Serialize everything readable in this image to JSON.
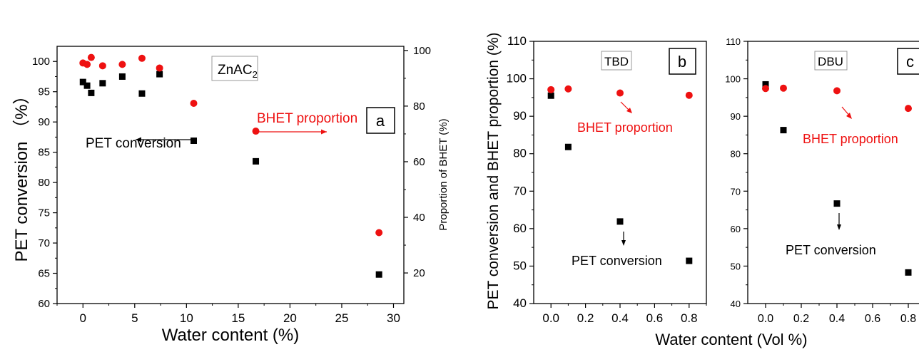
{
  "colors": {
    "conversion": "#000000",
    "bhet": "#ee1111",
    "arrow_red": "#ee1111"
  },
  "chart_data": [
    {
      "type": "scatter",
      "panel_letter": "a",
      "catalyst_label": "ZnAC",
      "catalyst_sub": "2",
      "xlabel": "Water content (%)",
      "ylabel": "PET conversion （%）",
      "y2label": "Proportion of BHET (%)",
      "xlim": [
        -2.5,
        31
      ],
      "ylim": [
        60,
        102.5
      ],
      "y2lim": [
        20,
        100
      ],
      "x_ticks": [
        0,
        5,
        10,
        15,
        20,
        25,
        30
      ],
      "y_ticks": [
        60,
        65,
        70,
        75,
        80,
        85,
        90,
        95,
        100
      ],
      "y2_ticks": [
        20,
        40,
        60,
        80,
        100
      ],
      "annotations": [
        "BHET proportion",
        "PET conversion"
      ],
      "series": [
        {
          "name": "PET conversion",
          "axis": "left",
          "marker": "square",
          "x": [
            0,
            0.4,
            0.8,
            1.9,
            3.8,
            5.7,
            7.4,
            10.7,
            16.7,
            28.6
          ],
          "y": [
            96.6,
            96.0,
            94.8,
            96.4,
            97.5,
            94.7,
            97.9,
            86.9,
            83.5,
            64.8
          ]
        },
        {
          "name": "Proportion of BHET",
          "axis": "right",
          "marker": "circle",
          "x": [
            0,
            0.4,
            0.8,
            1.9,
            3.8,
            5.7,
            7.4,
            10.7,
            16.7,
            28.6
          ],
          "y": [
            95.5,
            95.0,
            97.5,
            94.5,
            95.0,
            97.2,
            93.7,
            81.0,
            71.0,
            34.5
          ]
        }
      ]
    },
    {
      "type": "scatter",
      "panel_letter": "b",
      "catalyst_label": "TBD",
      "ylabel": "PET conversion and BHET proportion (%)",
      "xlim": [
        -0.1,
        0.9
      ],
      "ylim": [
        40,
        110
      ],
      "x_ticks": [
        "0.0",
        "0.2",
        "0.4",
        "0.6",
        "0.8"
      ],
      "y_ticks": [
        40,
        50,
        60,
        70,
        80,
        90,
        100,
        110
      ],
      "annotations": [
        "BHET proportion",
        "PET conversion"
      ],
      "series": [
        {
          "name": "PET conversion",
          "marker": "square",
          "x": [
            0,
            0.1,
            0.4,
            0.8
          ],
          "y": [
            95.5,
            81.8,
            61.9,
            51.4
          ]
        },
        {
          "name": "BHET proportion",
          "marker": "circle",
          "x": [
            0,
            0.1,
            0.4,
            0.8
          ],
          "y": [
            97.1,
            97.3,
            96.2,
            95.6
          ]
        }
      ]
    },
    {
      "type": "scatter",
      "panel_letter": "c",
      "catalyst_label": "DBU",
      "xlim": [
        -0.1,
        0.9
      ],
      "ylim": [
        40,
        110
      ],
      "x_ticks": [
        "0.0",
        "0.2",
        "0.4",
        "0.6",
        "0.8"
      ],
      "y_ticks": [
        40,
        50,
        60,
        70,
        80,
        90,
        100,
        110
      ],
      "annotations": [
        "BHET proportion",
        "PET conversion"
      ],
      "series": [
        {
          "name": "PET conversion",
          "marker": "square",
          "x": [
            0,
            0.1,
            0.4,
            0.8
          ],
          "y": [
            98.5,
            86.3,
            66.7,
            48.3
          ]
        },
        {
          "name": "BHET proportion",
          "marker": "circle",
          "x": [
            0,
            0.1,
            0.4,
            0.8
          ],
          "y": [
            97.4,
            97.5,
            96.8,
            92.1
          ]
        }
      ]
    }
  ],
  "shared_xlabel": "Water content (Vol %)"
}
